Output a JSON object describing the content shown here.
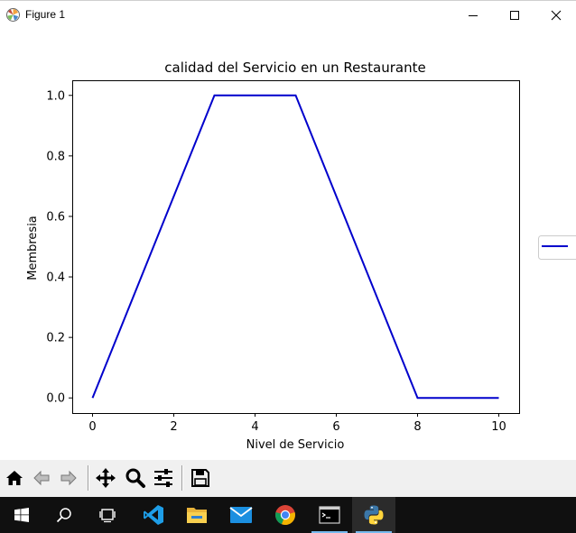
{
  "window": {
    "title": "Figure 1",
    "icon": "matplotlib-logo-icon",
    "controls": [
      "minimize-icon",
      "maximize-icon",
      "close-icon"
    ]
  },
  "chart_data": {
    "type": "line",
    "title": "calidad del Servicio en un Restaurante",
    "xlabel": "Nivel de Servicio",
    "ylabel": "Membresia",
    "xlim": [
      -0.5,
      10.5
    ],
    "ylim": [
      -0.05,
      1.05
    ],
    "xticks": [
      "0",
      "2",
      "4",
      "6",
      "8",
      "10"
    ],
    "yticks": [
      "0.0",
      "0.2",
      "0.4",
      "0.6",
      "0.8",
      "1.0"
    ],
    "grid": false,
    "legend": "outside-right",
    "series": [
      {
        "color": "#0000cc",
        "x": [
          0,
          3,
          5,
          8,
          10
        ],
        "y": [
          0.0,
          1.0,
          1.0,
          0.0,
          0.0
        ]
      }
    ]
  },
  "toolbar": {
    "buttons": [
      "home-icon",
      "back-icon",
      "forward-icon",
      "pan-icon",
      "zoom-icon",
      "configure-subplots-icon",
      "save-icon"
    ]
  },
  "taskbar": {
    "items": [
      "windows-start-icon",
      "search-icon",
      "task-view-icon",
      "vscode-icon",
      "file-explorer-icon",
      "mail-icon",
      "chrome-icon",
      "terminal-icon",
      "python-icon"
    ],
    "active": "python-icon",
    "accent": "#76b9ed"
  }
}
